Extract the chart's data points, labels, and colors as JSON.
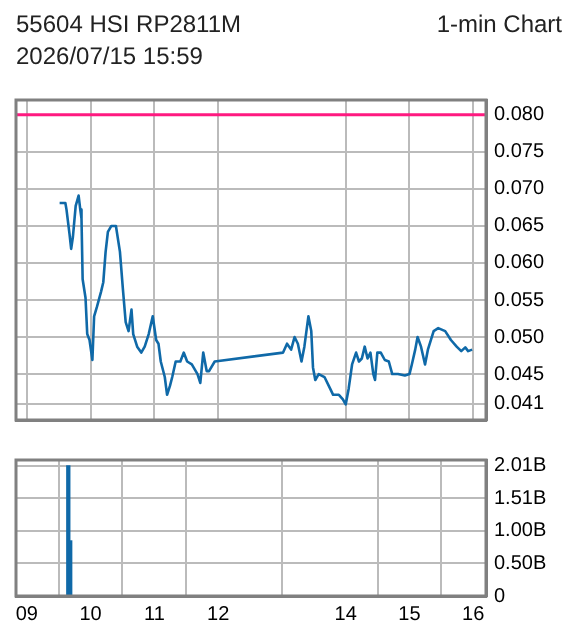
{
  "chart_data": [
    {
      "type": "line",
      "title": "55604 HSI RP2811M",
      "subtitle": "2026/07/15 15:59",
      "annotations": [
        "1-min Chart"
      ],
      "color": "#0f69a8",
      "grid": true,
      "tick_labels": "y",
      "x": [
        9.514,
        9.604,
        9.622,
        9.668,
        9.695,
        9.722,
        9.766,
        9.812,
        9.838,
        9.857,
        9.875,
        9.92,
        9.947,
        9.983,
        10.028,
        10.055,
        10.1,
        10.163,
        10.199,
        10.235,
        10.271,
        10.325,
        10.397,
        10.46,
        10.505,
        10.55,
        10.595,
        10.641,
        10.668,
        10.73,
        10.794,
        10.848,
        10.911,
        10.974,
        11.028,
        11.064,
        11.1,
        11.163,
        11.199,
        11.244,
        11.28,
        11.334,
        11.407,
        11.46,
        11.514,
        11.587,
        11.676,
        11.72,
        11.766,
        11.82,
        11.857,
        11.946,
        13.018,
        13.08,
        13.144,
        13.198,
        13.25,
        13.307,
        13.352,
        13.415,
        13.46,
        13.487,
        13.523,
        13.577,
        13.667,
        13.758,
        13.803,
        13.893,
        13.956,
        14.0,
        14.046,
        14.1,
        14.163,
        14.208,
        14.253,
        14.298,
        14.343,
        14.388,
        14.433,
        14.46,
        14.496,
        14.55,
        14.613,
        14.676,
        14.73,
        14.82,
        14.928,
        15.0,
        15.037,
        15.09,
        15.127,
        15.181,
        15.244,
        15.289,
        15.379,
        15.451,
        15.56,
        15.65,
        15.74,
        15.812,
        15.875,
        15.92,
        15.983
      ],
      "values": [
        0.0681,
        0.0681,
        0.0672,
        0.064,
        0.0619,
        0.0635,
        0.0677,
        0.0691,
        0.0672,
        0.066,
        0.0578,
        0.0553,
        0.0504,
        0.0496,
        0.0469,
        0.0528,
        0.0541,
        0.0561,
        0.0574,
        0.0615,
        0.0642,
        0.065,
        0.065,
        0.0615,
        0.0566,
        0.052,
        0.0508,
        0.0537,
        0.0504,
        0.0487,
        0.0479,
        0.0487,
        0.0504,
        0.0528,
        0.0496,
        0.0491,
        0.0467,
        0.0446,
        0.0422,
        0.0434,
        0.0446,
        0.0467,
        0.0467,
        0.0479,
        0.0467,
        0.0463,
        0.045,
        0.0438,
        0.0479,
        0.0454,
        0.0454,
        0.0467,
        0.0479,
        0.0491,
        0.0483,
        0.05,
        0.0491,
        0.0467,
        0.0487,
        0.0528,
        0.0508,
        0.0459,
        0.0442,
        0.045,
        0.0446,
        0.043,
        0.0422,
        0.0422,
        0.0416,
        0.0409,
        0.043,
        0.0463,
        0.0479,
        0.0467,
        0.0471,
        0.0487,
        0.0471,
        0.0479,
        0.045,
        0.0442,
        0.0479,
        0.0479,
        0.0469,
        0.0467,
        0.045,
        0.045,
        0.0448,
        0.045,
        0.0463,
        0.0483,
        0.05,
        0.0487,
        0.0463,
        0.0483,
        0.0508,
        0.0512,
        0.0508,
        0.0496,
        0.0487,
        0.0481,
        0.0486,
        0.0481,
        0.0483
      ],
      "xlim": [
        8.83,
        16.2
      ],
      "xticks": [
        9,
        10,
        11,
        12,
        14,
        15,
        16
      ],
      "ylim": [
        0.0388,
        0.082
      ],
      "yticks": [
        0.041,
        0.045,
        {
          "value": 0.05,
          "label": "0.050"
        },
        0.055,
        {
          "value": 0.06,
          "label": "0.060"
        },
        0.065,
        {
          "value": 0.07,
          "label": "0.070"
        },
        0.075,
        {
          "value": 0.08,
          "label": "0.080"
        }
      ],
      "ref_lines": [
        {
          "axis": "y",
          "value": 0.08,
          "color": "#ff1a80"
        }
      ]
    },
    {
      "type": "bar",
      "color": "#0f69a8",
      "grid": true,
      "x": [
        9.65,
        9.68
      ],
      "values": [
        2.01,
        0.85
      ],
      "xlim": [
        8.83,
        16.2
      ],
      "xticks": [
        {
          "value": 9,
          "label": "09"
        },
        10,
        11,
        12,
        14,
        15,
        16
      ],
      "ylim": [
        0,
        2.1
      ],
      "yticks": [
        {
          "value": 0,
          "label": "0"
        },
        {
          "value": 0.5025,
          "label": "0.50B"
        },
        {
          "value": 1.005,
          "label": "1.00B"
        },
        {
          "value": 1.5075,
          "label": "1.51B"
        },
        {
          "value": 2.01,
          "label": "2.01B"
        }
      ]
    }
  ]
}
